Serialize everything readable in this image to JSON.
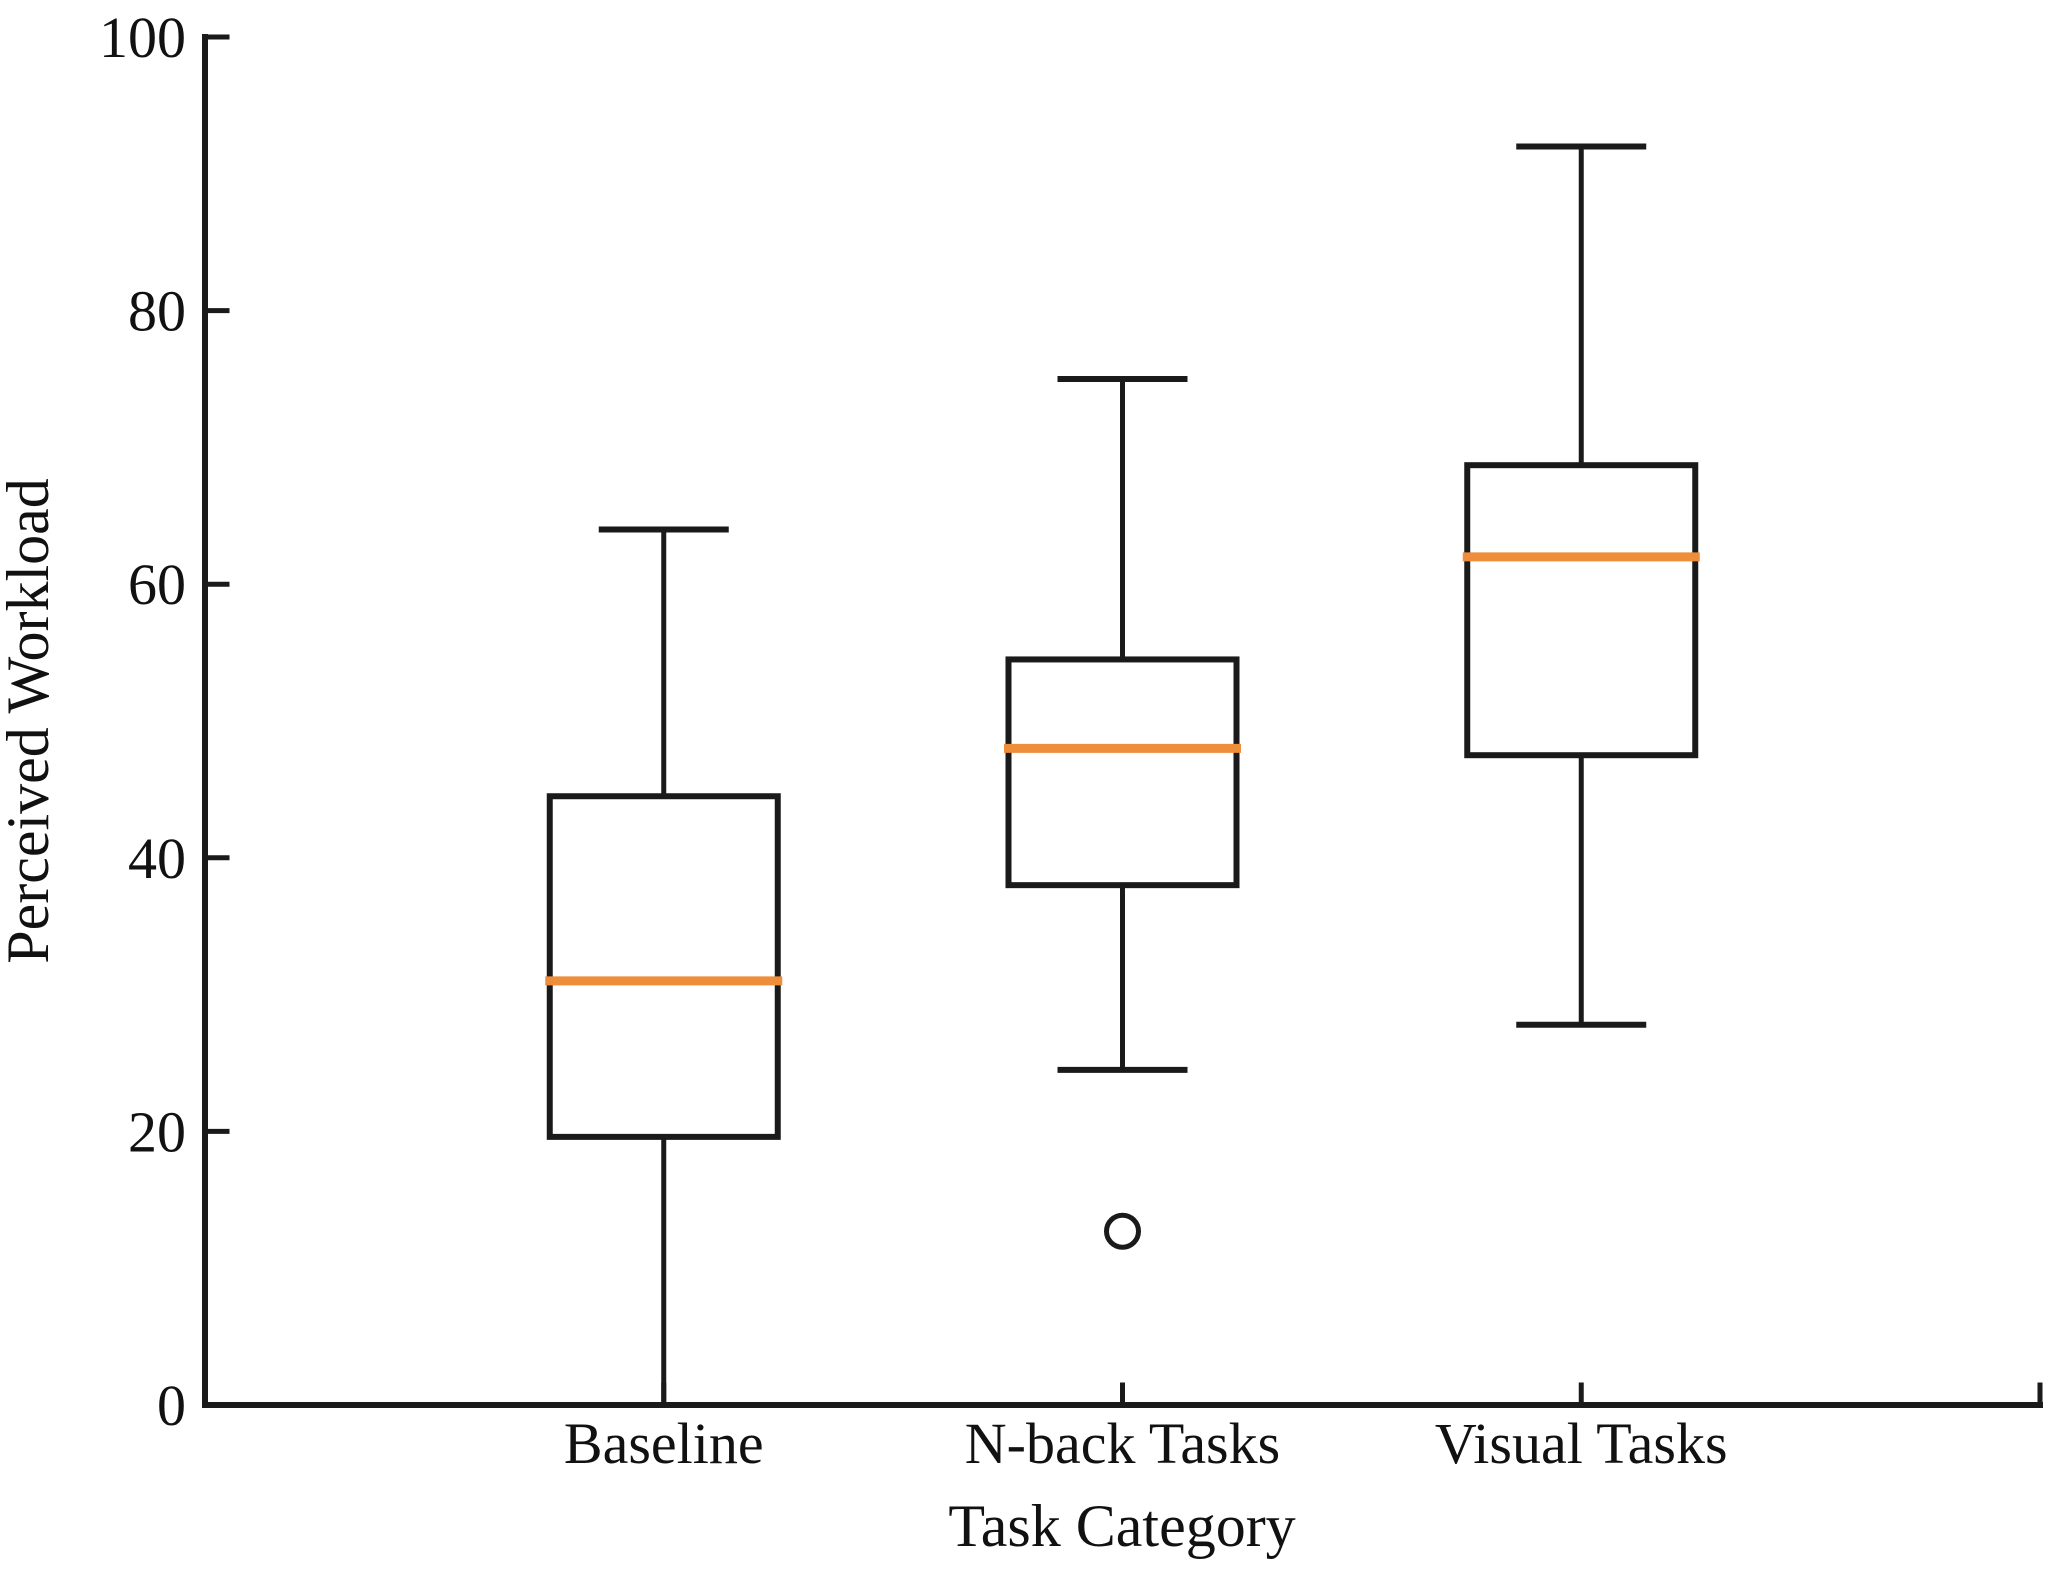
{
  "chart_data": {
    "type": "boxplot",
    "title": "",
    "xlabel": "Task Category",
    "ylabel": "Perceived Workload",
    "ylim": [
      0,
      100
    ],
    "yticks": [
      0,
      20,
      40,
      60,
      80,
      100
    ],
    "categories": [
      "Baseline",
      "N-back Tasks",
      "Visual Tasks"
    ],
    "boxes": [
      {
        "category": "Baseline",
        "whisker_low": 0,
        "q1": 19.6,
        "median": 31,
        "q3": 44.5,
        "whisker_high": 64,
        "outliers": []
      },
      {
        "category": "N-back Tasks",
        "whisker_low": 24.5,
        "q1": 38,
        "median": 48,
        "q3": 54.5,
        "whisker_high": 75,
        "outliers": [
          12.7
        ]
      },
      {
        "category": "Visual Tasks",
        "whisker_low": 27.8,
        "q1": 47.5,
        "median": 62,
        "q3": 68.7,
        "whisker_high": 92,
        "outliers": []
      }
    ],
    "grid": false,
    "legend_position": "none",
    "colors": {
      "axis": "#1a1a1a",
      "box": "#1a1a1a",
      "whisker": "#1a1a1a",
      "median": "#ee8d3a",
      "outlier": "#1a1a1a",
      "text": "#111111",
      "background": "#ffffff"
    }
  }
}
